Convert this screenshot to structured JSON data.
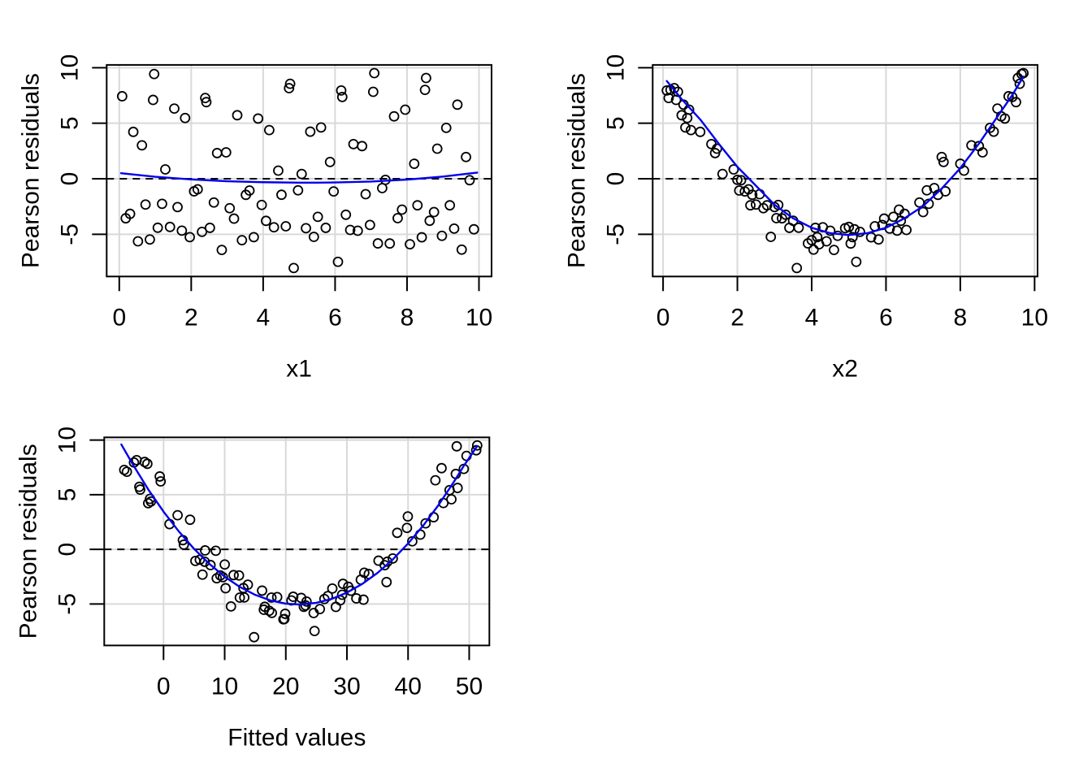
{
  "figure": {
    "background": "#ffffff"
  },
  "styles": {
    "point_color": "#000000",
    "smooth_color": "#0000EE",
    "grid_color": "#D9D9D9",
    "zero_line_color": "#000000",
    "axis_color": "#000000",
    "text_color": "#000000"
  },
  "chart_data": [
    {
      "type": "scatter",
      "xlabel": "x1",
      "ylabel": "Pearson residuals",
      "x_ticks": [
        0,
        2,
        4,
        6,
        8,
        10
      ],
      "y_ticks": [
        -5,
        0,
        5,
        10
      ],
      "xlim": [
        -0.35,
        10.35
      ],
      "ylim": [
        -8.8,
        10.25
      ],
      "grid": true,
      "zero_line": true,
      "points": [
        [
          6.17,
          7.95
        ],
        [
          2.39,
          7.27
        ],
        [
          8.5,
          8.0
        ],
        [
          4.72,
          8.16
        ],
        [
          0.94,
          7.1
        ],
        [
          7.06,
          7.83
        ],
        [
          3.28,
          5.72
        ],
        [
          9.4,
          6.67
        ],
        [
          5.61,
          4.62
        ],
        [
          1.83,
          5.47
        ],
        [
          7.95,
          6.22
        ],
        [
          4.17,
          4.38
        ],
        [
          0.39,
          4.22
        ],
        [
          6.51,
          3.12
        ],
        [
          2.72,
          2.31
        ],
        [
          8.84,
          2.71
        ],
        [
          5.07,
          0.43
        ],
        [
          1.28,
          0.84
        ],
        [
          7.4,
          -0.1
        ],
        [
          3.62,
          -1.06
        ],
        [
          9.74,
          -0.13
        ],
        [
          5.96,
          -1.14
        ],
        [
          2.18,
          -0.95
        ],
        [
          8.29,
          -2.39
        ],
        [
          4.51,
          -1.44
        ],
        [
          0.73,
          -2.32
        ],
        [
          6.85,
          -1.39
        ],
        [
          3.07,
          -2.65
        ],
        [
          9.19,
          -2.39
        ],
        [
          5.41,
          -5.23
        ],
        [
          1.62,
          -2.55
        ],
        [
          7.74,
          -3.55
        ],
        [
          3.96,
          -2.36
        ],
        [
          0.18,
          -3.56
        ],
        [
          6.3,
          -3.24
        ],
        [
          2.52,
          -4.42
        ],
        [
          8.63,
          -3.78
        ],
        [
          4.85,
          -8.04
        ],
        [
          1.07,
          -4.41
        ],
        [
          7.19,
          -5.82
        ],
        [
          3.41,
          -5.53
        ],
        [
          9.52,
          -6.38
        ],
        [
          5.74,
          -4.42
        ],
        [
          1.96,
          -5.26
        ],
        [
          8.08,
          -5.9
        ],
        [
          4.3,
          -4.37
        ],
        [
          0.52,
          -5.63
        ],
        [
          6.63,
          -4.68
        ],
        [
          2.85,
          -6.41
        ],
        [
          8.97,
          -5.14
        ],
        [
          5.19,
          -4.45
        ],
        [
          1.41,
          -4.34
        ],
        [
          7.52,
          -5.83
        ],
        [
          3.74,
          -5.26
        ],
        [
          9.86,
          -4.55
        ],
        [
          6.08,
          -7.48
        ],
        [
          2.3,
          -4.78
        ],
        [
          8.41,
          -5.27
        ],
        [
          4.63,
          -4.28
        ],
        [
          0.85,
          -5.47
        ],
        [
          6.97,
          -4.16
        ],
        [
          3.19,
          -3.59
        ],
        [
          9.31,
          -4.49
        ],
        [
          5.52,
          -3.43
        ],
        [
          1.74,
          -4.67
        ],
        [
          7.86,
          -2.78
        ],
        [
          4.08,
          -3.79
        ],
        [
          0.3,
          -3.16
        ],
        [
          6.42,
          -4.61
        ],
        [
          2.63,
          -2.14
        ],
        [
          8.75,
          -3.0
        ],
        [
          4.97,
          -1.04
        ],
        [
          1.19,
          -2.26
        ],
        [
          7.31,
          -0.84
        ],
        [
          3.52,
          -1.45
        ],
        [
          9.64,
          1.96
        ],
        [
          5.86,
          1.51
        ],
        [
          2.08,
          -1.13
        ],
        [
          8.2,
          1.35
        ],
        [
          4.42,
          0.73
        ],
        [
          0.63,
          3.01
        ],
        [
          6.75,
          2.94
        ],
        [
          2.97,
          2.38
        ],
        [
          9.09,
          4.58
        ],
        [
          5.31,
          4.24
        ],
        [
          1.53,
          6.32
        ],
        [
          7.64,
          5.62
        ],
        [
          3.86,
          5.42
        ],
        [
          0.08,
          7.43
        ],
        [
          6.2,
          7.36
        ],
        [
          2.42,
          6.9
        ],
        [
          8.53,
          9.07
        ],
        [
          4.75,
          8.55
        ],
        [
          0.97,
          9.43
        ],
        [
          7.09,
          9.51
        ]
      ],
      "smooth": [
        [
          0.05,
          0.5
        ],
        [
          1,
          0.18
        ],
        [
          2,
          -0.06
        ],
        [
          3,
          -0.22
        ],
        [
          4,
          -0.31
        ],
        [
          5,
          -0.35
        ],
        [
          5.5,
          -0.35
        ],
        [
          6,
          -0.33
        ],
        [
          7,
          -0.25
        ],
        [
          8,
          -0.08
        ],
        [
          9,
          0.2
        ],
        [
          9.95,
          0.55
        ]
      ]
    },
    {
      "type": "scatter",
      "xlabel": "x2",
      "ylabel": "Pearson residuals",
      "x_ticks": [
        0,
        2,
        4,
        6,
        8,
        10
      ],
      "y_ticks": [
        -5,
        0,
        5,
        10
      ],
      "xlim": [
        -0.28,
        10.08
      ],
      "ylim": [
        -8.8,
        10.25
      ],
      "grid": true,
      "zero_line": true,
      "points": [
        [
          0.1,
          7.95
        ],
        [
          0.15,
          7.27
        ],
        [
          0.2,
          8.0
        ],
        [
          0.3,
          8.16
        ],
        [
          0.35,
          7.1
        ],
        [
          0.4,
          7.83
        ],
        [
          0.5,
          5.72
        ],
        [
          0.55,
          6.67
        ],
        [
          0.6,
          4.62
        ],
        [
          0.65,
          5.47
        ],
        [
          0.7,
          6.22
        ],
        [
          0.75,
          4.38
        ],
        [
          1.0,
          4.22
        ],
        [
          1.3,
          3.12
        ],
        [
          1.4,
          2.31
        ],
        [
          1.45,
          2.71
        ],
        [
          1.6,
          0.43
        ],
        [
          1.9,
          0.84
        ],
        [
          2.0,
          -0.1
        ],
        [
          2.05,
          -1.06
        ],
        [
          2.1,
          -0.13
        ],
        [
          2.2,
          -1.14
        ],
        [
          2.3,
          -0.95
        ],
        [
          2.35,
          -2.39
        ],
        [
          2.4,
          -1.44
        ],
        [
          2.5,
          -2.32
        ],
        [
          2.6,
          -1.39
        ],
        [
          2.7,
          -2.65
        ],
        [
          2.8,
          -2.39
        ],
        [
          2.9,
          -5.23
        ],
        [
          3.0,
          -2.55
        ],
        [
          3.05,
          -3.55
        ],
        [
          3.1,
          -2.36
        ],
        [
          3.2,
          -3.56
        ],
        [
          3.3,
          -3.24
        ],
        [
          3.4,
          -4.42
        ],
        [
          3.5,
          -3.78
        ],
        [
          3.6,
          -8.04
        ],
        [
          3.65,
          -4.41
        ],
        [
          3.9,
          -5.82
        ],
        [
          4.0,
          -5.53
        ],
        [
          4.05,
          -6.38
        ],
        [
          4.1,
          -4.42
        ],
        [
          4.15,
          -5.26
        ],
        [
          4.2,
          -5.9
        ],
        [
          4.3,
          -4.37
        ],
        [
          4.4,
          -5.63
        ],
        [
          4.5,
          -4.68
        ],
        [
          4.6,
          -6.41
        ],
        [
          4.7,
          -5.14
        ],
        [
          4.9,
          -4.45
        ],
        [
          5.0,
          -4.34
        ],
        [
          5.05,
          -5.83
        ],
        [
          5.1,
          -5.26
        ],
        [
          5.15,
          -4.55
        ],
        [
          5.2,
          -7.48
        ],
        [
          5.3,
          -4.78
        ],
        [
          5.6,
          -5.27
        ],
        [
          5.7,
          -4.28
        ],
        [
          5.8,
          -5.47
        ],
        [
          5.9,
          -4.16
        ],
        [
          5.95,
          -3.59
        ],
        [
          6.1,
          -4.49
        ],
        [
          6.2,
          -3.43
        ],
        [
          6.3,
          -4.67
        ],
        [
          6.35,
          -2.78
        ],
        [
          6.4,
          -3.79
        ],
        [
          6.5,
          -3.16
        ],
        [
          6.55,
          -4.61
        ],
        [
          6.9,
          -2.14
        ],
        [
          7.0,
          -3.0
        ],
        [
          7.1,
          -1.04
        ],
        [
          7.15,
          -2.26
        ],
        [
          7.3,
          -0.84
        ],
        [
          7.4,
          -1.45
        ],
        [
          7.5,
          1.96
        ],
        [
          7.55,
          1.51
        ],
        [
          7.6,
          -1.13
        ],
        [
          8.0,
          1.35
        ],
        [
          8.1,
          0.73
        ],
        [
          8.3,
          3.01
        ],
        [
          8.5,
          2.94
        ],
        [
          8.6,
          2.38
        ],
        [
          8.8,
          4.58
        ],
        [
          8.9,
          4.24
        ],
        [
          9.0,
          6.32
        ],
        [
          9.1,
          5.62
        ],
        [
          9.2,
          5.42
        ],
        [
          9.3,
          7.43
        ],
        [
          9.4,
          7.36
        ],
        [
          9.5,
          6.9
        ],
        [
          9.55,
          9.07
        ],
        [
          9.6,
          8.55
        ],
        [
          9.65,
          9.43
        ],
        [
          9.7,
          9.51
        ]
      ],
      "smooth": [
        [
          0.1,
          8.8
        ],
        [
          0.5,
          7.17
        ],
        [
          1,
          5.34
        ],
        [
          1.5,
          3.15
        ],
        [
          2,
          1.07
        ],
        [
          2.5,
          -0.63
        ],
        [
          3,
          -2.34
        ],
        [
          3.5,
          -3.56
        ],
        [
          4,
          -4.41
        ],
        [
          4.5,
          -4.9
        ],
        [
          5,
          -5.07
        ],
        [
          5.5,
          -4.9
        ],
        [
          6,
          -4.41
        ],
        [
          6.5,
          -3.56
        ],
        [
          7,
          -2.46
        ],
        [
          7.5,
          -0.88
        ],
        [
          8,
          0.95
        ],
        [
          8.5,
          3.15
        ],
        [
          9,
          5.59
        ],
        [
          9.4,
          7.54
        ],
        [
          9.7,
          9.2
        ]
      ]
    },
    {
      "type": "scatter",
      "xlabel": "Fitted values",
      "ylabel": "Pearson residuals",
      "x_ticks": [
        0,
        10,
        20,
        30,
        40,
        50
      ],
      "y_ticks": [
        -5,
        0,
        5,
        10
      ],
      "xlim": [
        -9.7,
        53.3
      ],
      "ylim": [
        -8.8,
        10.25
      ],
      "grid": true,
      "zero_line": true,
      "points": [
        [
          -4.84,
          7.95
        ],
        [
          -6.43,
          7.27
        ],
        [
          -3.09,
          8.0
        ],
        [
          -4.4,
          8.16
        ],
        [
          -6.0,
          7.1
        ],
        [
          -2.65,
          7.83
        ],
        [
          -3.96,
          5.72
        ],
        [
          -0.62,
          6.67
        ],
        [
          -2.22,
          4.62
        ],
        [
          -3.82,
          5.47
        ],
        [
          -0.47,
          6.22
        ],
        [
          -2.07,
          4.38
        ],
        [
          -2.51,
          4.22
        ],
        [
          2.3,
          3.12
        ],
        [
          0.98,
          2.31
        ],
        [
          4.34,
          2.71
        ],
        [
          3.32,
          0.43
        ],
        [
          3.16,
          0.84
        ],
        [
          6.8,
          -0.1
        ],
        [
          5.21,
          -1.06
        ],
        [
          8.55,
          -0.13
        ],
        [
          6.74,
          -1.14
        ],
        [
          5.93,
          -0.95
        ],
        [
          9.28,
          -2.39
        ],
        [
          7.68,
          -1.44
        ],
        [
          6.37,
          -2.32
        ],
        [
          10.01,
          -1.39
        ],
        [
          8.7,
          -2.65
        ],
        [
          12.34,
          -2.39
        ],
        [
          11.03,
          -5.23
        ],
        [
          9.71,
          -2.55
        ],
        [
          13.07,
          -3.55
        ],
        [
          11.46,
          -2.36
        ],
        [
          10.15,
          -3.56
        ],
        [
          13.79,
          -3.24
        ],
        [
          12.48,
          -4.42
        ],
        [
          16.12,
          -3.78
        ],
        [
          14.81,
          -8.04
        ],
        [
          13.21,
          -4.41
        ],
        [
          17.72,
          -5.82
        ],
        [
          16.41,
          -5.53
        ],
        [
          19.76,
          -6.38
        ],
        [
          17.65,
          -4.42
        ],
        [
          16.56,
          -5.26
        ],
        [
          19.9,
          -5.9
        ],
        [
          18.59,
          -4.37
        ],
        [
          17.28,
          -5.63
        ],
        [
          20.92,
          -4.68
        ],
        [
          19.61,
          -6.41
        ],
        [
          23.25,
          -5.14
        ],
        [
          22.52,
          -4.45
        ],
        [
          21.21,
          -4.34
        ],
        [
          24.56,
          -5.83
        ],
        [
          22.95,
          -5.26
        ],
        [
          26.31,
          -4.55
        ],
        [
          24.7,
          -7.48
        ],
        [
          23.39,
          -4.78
        ],
        [
          28.19,
          -5.27
        ],
        [
          26.88,
          -4.28
        ],
        [
          25.57,
          -5.47
        ],
        [
          29.21,
          -4.16
        ],
        [
          27.61,
          -3.59
        ],
        [
          31.54,
          -4.49
        ],
        [
          30.22,
          -3.43
        ],
        [
          28.91,
          -4.67
        ],
        [
          32.27,
          -2.78
        ],
        [
          30.66,
          -3.79
        ],
        [
          29.35,
          -3.16
        ],
        [
          32.71,
          -4.61
        ],
        [
          32.84,
          -2.14
        ],
        [
          36.48,
          -3.0
        ],
        [
          35.17,
          -1.04
        ],
        [
          33.57,
          -2.26
        ],
        [
          37.5,
          -0.84
        ],
        [
          36.18,
          -1.45
        ],
        [
          39.82,
          1.96
        ],
        [
          38.23,
          1.51
        ],
        [
          36.62,
          -1.13
        ],
        [
          42.0,
          1.35
        ],
        [
          40.69,
          0.73
        ],
        [
          39.96,
          3.01
        ],
        [
          44.18,
          2.94
        ],
        [
          42.87,
          2.38
        ],
        [
          47.09,
          4.58
        ],
        [
          45.78,
          4.24
        ],
        [
          44.47,
          6.32
        ],
        [
          48.1,
          5.62
        ],
        [
          46.79,
          5.42
        ],
        [
          45.48,
          7.43
        ],
        [
          49.12,
          7.36
        ],
        [
          47.81,
          6.9
        ],
        [
          51.15,
          9.07
        ],
        [
          49.56,
          8.55
        ],
        [
          47.96,
          9.43
        ],
        [
          51.31,
          9.51
        ]
      ],
      "smooth": [
        [
          -6.9,
          9.6
        ],
        [
          -5,
          7.75
        ],
        [
          -2.5,
          5.48
        ],
        [
          0,
          3.45
        ],
        [
          2.5,
          1.64
        ],
        [
          5,
          0.04
        ],
        [
          7.5,
          -1.34
        ],
        [
          10,
          -2.5
        ],
        [
          12.5,
          -3.45
        ],
        [
          15,
          -4.17
        ],
        [
          17.5,
          -4.68
        ],
        [
          20,
          -4.97
        ],
        [
          22.1,
          -5.05
        ],
        [
          25,
          -4.9
        ],
        [
          27.5,
          -4.54
        ],
        [
          30,
          -3.96
        ],
        [
          32.5,
          -3.17
        ],
        [
          35,
          -2.16
        ],
        [
          37.5,
          -0.93
        ],
        [
          40,
          0.53
        ],
        [
          42.5,
          2.19
        ],
        [
          45,
          4.07
        ],
        [
          47.5,
          6.18
        ],
        [
          49,
          7.54
        ],
        [
          51.3,
          9.45
        ]
      ]
    }
  ]
}
